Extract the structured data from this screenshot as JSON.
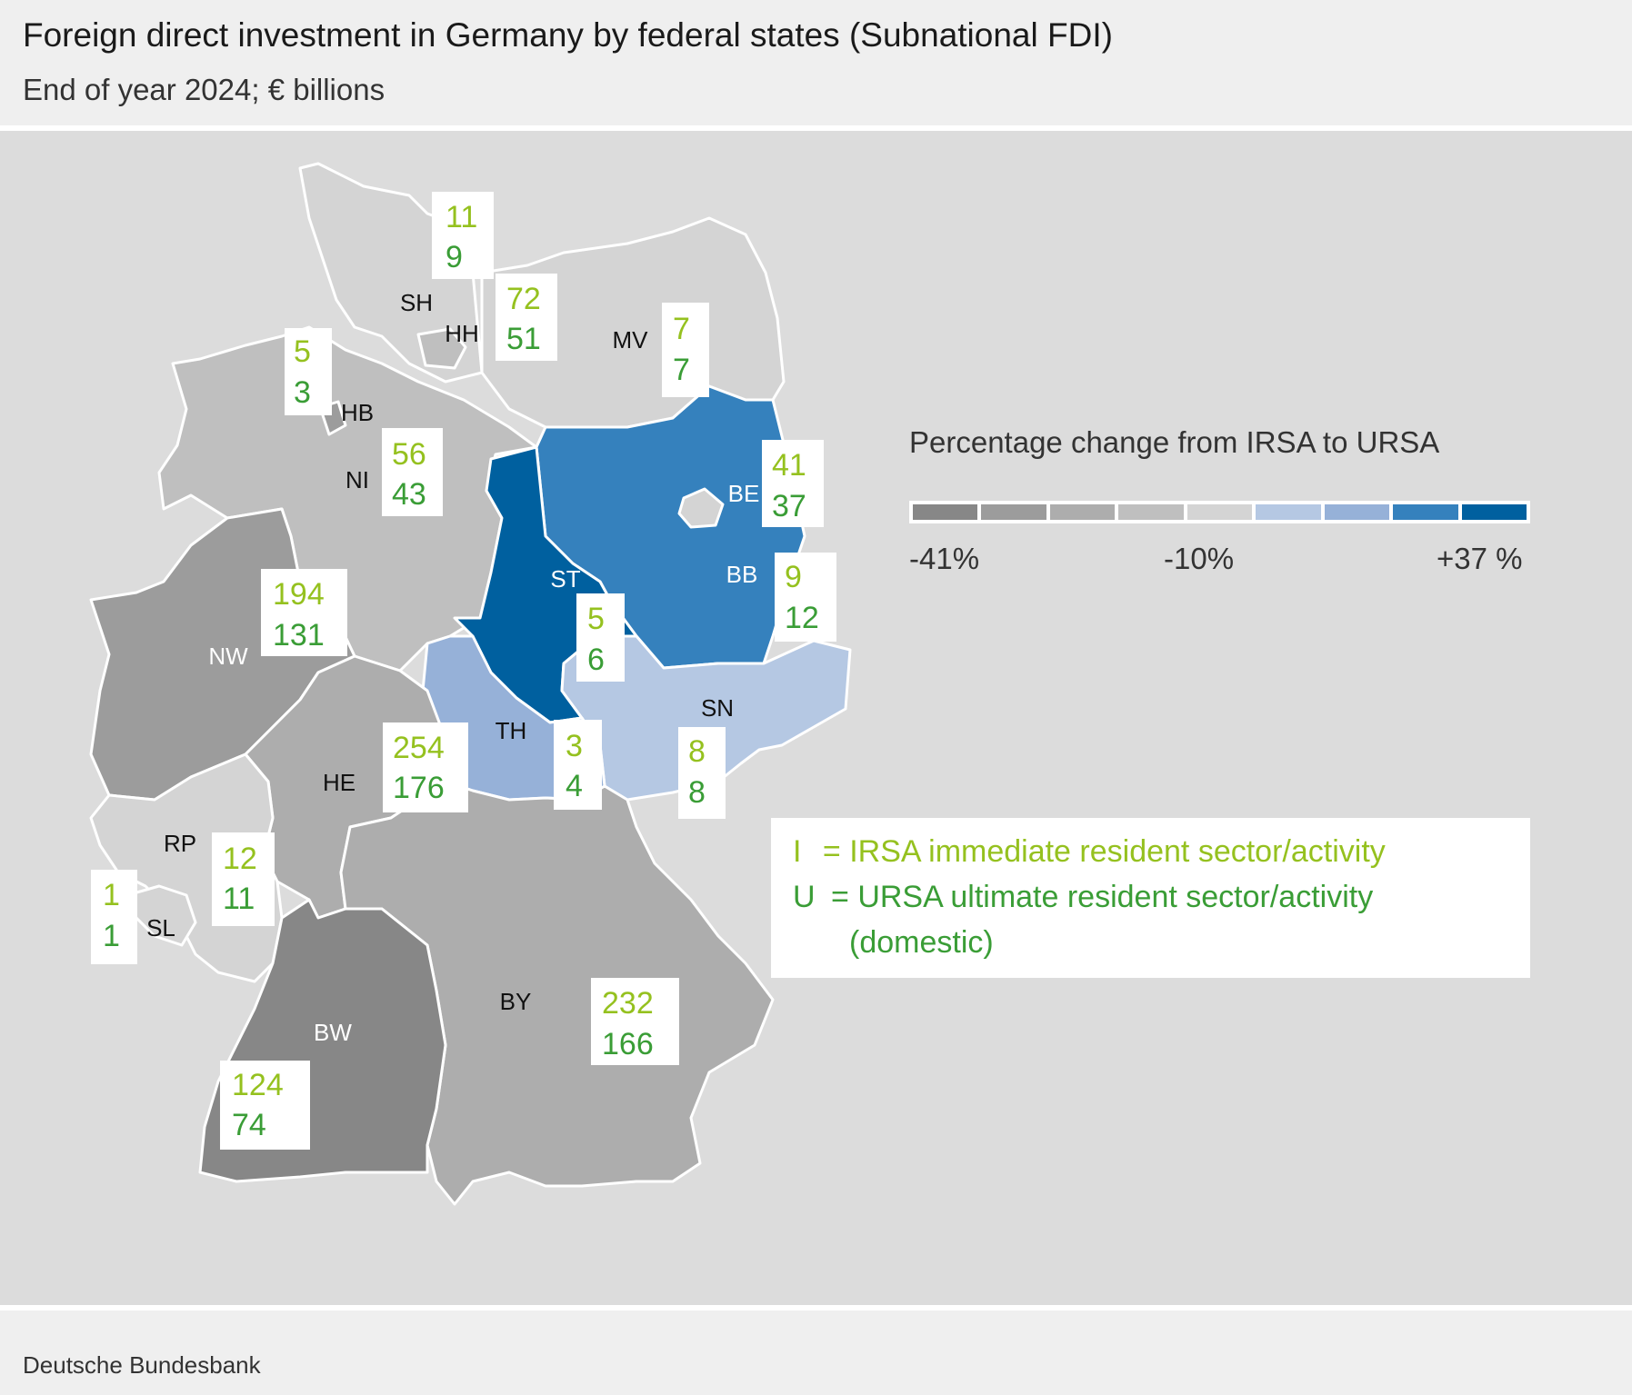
{
  "title": "Foreign direct investment in Germany by federal states (Subnational FDI)",
  "subtitle": "End of year 2024; € billions",
  "source": "Deutsche Bundesbank",
  "legend": {
    "title": "Percentage change from IRSA to URSA",
    "scale_colors": [
      "#878787",
      "#9c9c9c",
      "#adadad",
      "#bfbfbf",
      "#d4d4d4",
      "#b5c8e3",
      "#96b1d8",
      "#3581bd",
      "#00609f"
    ],
    "labels": {
      "low": "-41%",
      "mid": "-10%",
      "high": "+37 %"
    }
  },
  "key": {
    "irsa_prefix": "I",
    "irsa_text": "= IRSA immediate resident sector/activity",
    "ursa_prefix": "U",
    "ursa_text": "= URSA ultimate resident sector/activity",
    "ursa_text2": "(domestic)",
    "irsa_color": "#95c11f",
    "ursa_color": "#3a9d36"
  },
  "states": [
    {
      "code": "SH",
      "irsa": "11",
      "ursa": "9",
      "fill": "#d4d4d4"
    },
    {
      "code": "HH",
      "irsa": "72",
      "ursa": "51",
      "fill": "#bfbfbf"
    },
    {
      "code": "MV",
      "irsa": "7",
      "ursa": "7",
      "fill": "#d4d4d4"
    },
    {
      "code": "HB",
      "irsa": "5",
      "ursa": "3",
      "fill": "#9c9c9c"
    },
    {
      "code": "NI",
      "irsa": "56",
      "ursa": "43",
      "fill": "#bfbfbf"
    },
    {
      "code": "BE",
      "irsa": "41",
      "ursa": "37",
      "fill": "#d4d4d4"
    },
    {
      "code": "BB",
      "irsa": "9",
      "ursa": "12",
      "fill": "#3581bd"
    },
    {
      "code": "ST",
      "irsa": "5",
      "ursa": "6",
      "fill": "#00609f"
    },
    {
      "code": "NW",
      "irsa": "194",
      "ursa": "131",
      "fill": "#9c9c9c"
    },
    {
      "code": "SN",
      "irsa": "8",
      "ursa": "8",
      "fill": "#b5c8e3"
    },
    {
      "code": "TH",
      "irsa": "3",
      "ursa": "4",
      "fill": "#96b1d8"
    },
    {
      "code": "HE",
      "irsa": "254",
      "ursa": "176",
      "fill": "#adadad"
    },
    {
      "code": "RP",
      "irsa": "12",
      "ursa": "11",
      "fill": "#d4d4d4"
    },
    {
      "code": "SL",
      "irsa": "1",
      "ursa": "1",
      "fill": "#d4d4d4"
    },
    {
      "code": "BY",
      "irsa": "232",
      "ursa": "166",
      "fill": "#adadad"
    },
    {
      "code": "BW",
      "irsa": "124",
      "ursa": "74",
      "fill": "#878787"
    }
  ]
}
